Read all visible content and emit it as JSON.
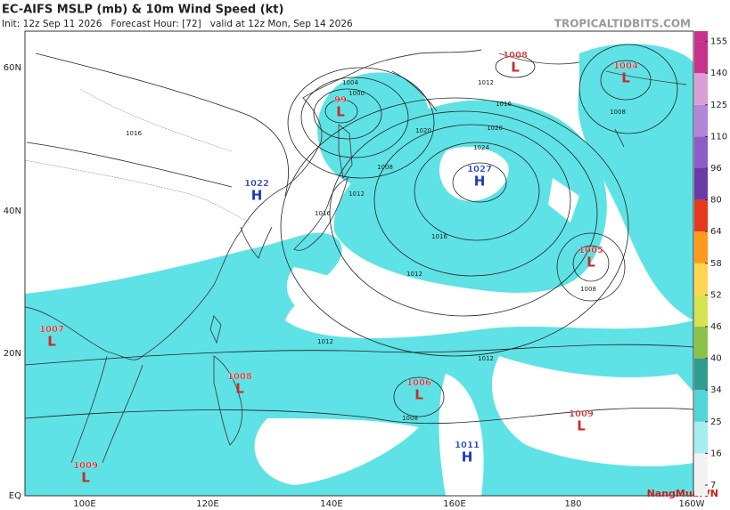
{
  "header": {
    "title": "EC-AIFS MSLP (mb) & 10m Wind Speed (kt)",
    "subtitle": "Init: 12z Sep 11 2026   Forecast Hour: [72]   valid at 12z Mon, Sep 14 2026",
    "watermark": "TROPICALTIDBITS.COM"
  },
  "map": {
    "lat_labels": [
      "60N",
      "40N",
      "20N",
      "EQ"
    ],
    "lon_labels": [
      "100E",
      "120E",
      "140E",
      "160E",
      "180",
      "160W"
    ],
    "centers": [
      {
        "pressure": "99",
        "symbol": "L"
      },
      {
        "pressure": "1008",
        "symbol": "L"
      },
      {
        "pressure": "1004",
        "symbol": "L"
      },
      {
        "pressure": "1022",
        "symbol": "H"
      },
      {
        "pressure": "1027",
        "symbol": "H"
      },
      {
        "pressure": "1005",
        "symbol": "L"
      },
      {
        "pressure": "1007",
        "symbol": "L"
      },
      {
        "pressure": "1008",
        "symbol": "L"
      },
      {
        "pressure": "1006",
        "symbol": "L"
      },
      {
        "pressure": "1009",
        "symbol": "L"
      },
      {
        "pressure": "1011",
        "symbol": "H"
      },
      {
        "pressure": "1009",
        "symbol": "L"
      }
    ],
    "isobar_labels": [
      "1004",
      "1000",
      "1008",
      "1012",
      "1016",
      "1020",
      "1024",
      "1016",
      "1012",
      "1008",
      "1016",
      "1012",
      "1020",
      "1012",
      "1008",
      "1012",
      "1008",
      "1016"
    ]
  },
  "colorbar": {
    "ticks": [
      7,
      16,
      25,
      34,
      40,
      46,
      52,
      58,
      64,
      80,
      96,
      110,
      125,
      140,
      155
    ],
    "colors": [
      "#f2f2f2",
      "#a6eef0",
      "#4fd6d8",
      "#2f9d8f",
      "#8bc34a",
      "#d6e24f",
      "#ffd54f",
      "#ff9a1f",
      "#e5391d",
      "#6b3aa8",
      "#8e5cc8",
      "#b286d8",
      "#d9a0d8",
      "#c8328c"
    ]
  },
  "logo": "NangMua.VN"
}
